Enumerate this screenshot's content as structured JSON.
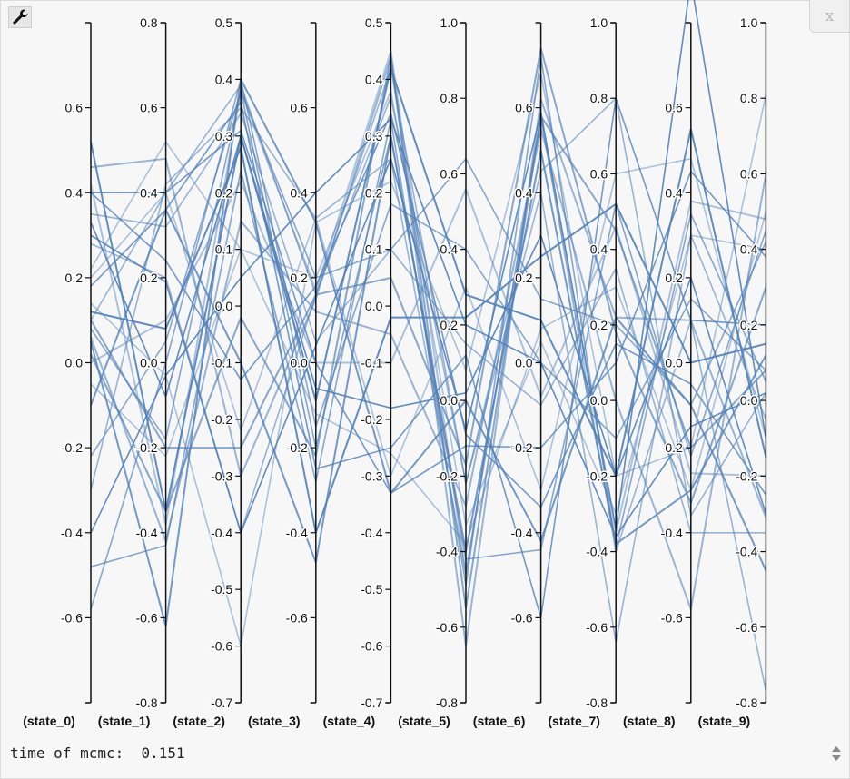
{
  "status": {
    "label": "time of mcmc:",
    "value": "0.151"
  },
  "toolbar": {
    "tool_icon": "wrench-icon"
  },
  "close": {
    "label": "x",
    "icon": "close-icon"
  },
  "scroll": {
    "icon": "up-down-arrows-icon"
  },
  "colors": {
    "line": "#4f7fb8",
    "axis": "#111111",
    "background": "#f7f7f7"
  },
  "chart_data": {
    "type": "parallel-coordinates",
    "dimensions": [
      {
        "name": "(state_0)",
        "range": [
          -0.8,
          0.8
        ],
        "ticks": [
          "0.6",
          "0.4",
          "0.2",
          "0.0",
          "-0.2",
          "-0.4",
          "-0.6"
        ]
      },
      {
        "name": "(state_1)",
        "range": [
          -0.8,
          0.8
        ],
        "ticks": [
          "0.8",
          "0.6",
          "0.4",
          "0.2",
          "0.0",
          "-0.2",
          "-0.4",
          "-0.6",
          "-0.8"
        ]
      },
      {
        "name": "(state_2)",
        "range": [
          -0.7,
          0.5
        ],
        "ticks": [
          "0.5",
          "0.4",
          "0.3",
          "0.2",
          "0.1",
          "0.0",
          "-0.1",
          "-0.2",
          "-0.3",
          "-0.4",
          "-0.5",
          "-0.6",
          "-0.7"
        ]
      },
      {
        "name": "(state_3)",
        "range": [
          -0.8,
          0.8
        ],
        "ticks": [
          "0.6",
          "0.4",
          "0.2",
          "0.0",
          "-0.2",
          "-0.4",
          "-0.6"
        ]
      },
      {
        "name": "(state_4)",
        "range": [
          -0.7,
          0.5
        ],
        "ticks": [
          "0.5",
          "0.4",
          "0.3",
          "0.2",
          "0.1",
          "0.0",
          "-0.1",
          "-0.2",
          "-0.3",
          "-0.4",
          "-0.5",
          "-0.6",
          "-0.7"
        ]
      },
      {
        "name": "(state_5)",
        "range": [
          -0.8,
          1.0
        ],
        "ticks": [
          "1.0",
          "0.8",
          "0.6",
          "0.4",
          "0.2",
          "0.0",
          "-0.2",
          "-0.4",
          "-0.6",
          "-0.8"
        ]
      },
      {
        "name": "(state_6)",
        "range": [
          -0.8,
          0.8
        ],
        "ticks": [
          "0.6",
          "0.4",
          "0.2",
          "0.0",
          "-0.2",
          "-0.4",
          "-0.6"
        ]
      },
      {
        "name": "(state_7)",
        "range": [
          -0.8,
          1.0
        ],
        "ticks": [
          "1.0",
          "0.8",
          "0.6",
          "0.4",
          "0.2",
          "0.0",
          "-0.2",
          "-0.4",
          "-0.6",
          "-0.8"
        ]
      },
      {
        "name": "(state_8)",
        "range": [
          -0.8,
          0.8
        ],
        "ticks": [
          "0.6",
          "0.4",
          "0.2",
          "0.0",
          "-0.2",
          "-0.4",
          "-0.6"
        ]
      },
      {
        "name": "(state_9)",
        "range": [
          -0.8,
          1.0
        ],
        "ticks": [
          "1.0",
          "0.8",
          "0.6",
          "0.4",
          "0.2",
          "0.0",
          "-0.2",
          "-0.4",
          "-0.6",
          "-0.8"
        ]
      }
    ],
    "samples": [
      [
        0.42,
        -0.38,
        0.38,
        0.17,
        0.45,
        -0.46,
        0.58,
        -0.35,
        0.38,
        0.48
      ],
      [
        0.1,
        0.4,
        0.39,
        0.16,
        0.37,
        -0.22,
        0.45,
        0.8,
        -0.36,
        0.02
      ],
      [
        -0.48,
        -0.43,
        0.24,
        -0.28,
        0.33,
        -0.49,
        0.72,
        -0.39,
        0.35,
        0.05
      ],
      [
        0.05,
        -0.62,
        0.4,
        0.33,
        -0.33,
        0.0,
        -0.42,
        0.22,
        -0.1,
        -0.45
      ],
      [
        0.3,
        0.19,
        -0.4,
        0.04,
        0.26,
        -0.08,
        0.59,
        -0.34,
        0.9,
        -0.1
      ],
      [
        0.14,
        -0.03,
        -0.6,
        0.33,
        0.22,
        0.08,
        0.68,
        -0.2,
        -0.2,
        0.81
      ],
      [
        0.46,
        0.48,
        -0.3,
        0.15,
        0.44,
        -0.65,
        0.62,
        0.22,
        0.1,
        -0.31
      ],
      [
        -0.22,
        0.05,
        0.38,
        -0.2,
        0.3,
        -0.42,
        -0.44,
        0.52,
        -0.22,
        0.45
      ],
      [
        0.18,
        0.36,
        0.36,
        -0.25,
        -0.25,
        0.12,
        -0.6,
        0.8,
        0.1,
        0.2
      ],
      [
        0.52,
        -0.35,
        0.3,
        -0.09,
        0.42,
        0.28,
        0.1,
        -0.2,
        0.55,
        -0.15
      ],
      [
        0.22,
        0.52,
        0.1,
        -0.12,
        -0.26,
        -0.38,
        0.08,
        0.3,
        -0.3,
        0.5
      ],
      [
        -0.3,
        0.42,
        0.35,
        0.34,
        0.26,
        -0.46,
        0.58,
        -0.4,
        0.1,
        -0.77
      ],
      [
        0.1,
        -0.2,
        -0.25,
        0.16,
        0.05,
        -0.17,
        0.74,
        0.18,
        -0.33,
        0.3
      ],
      [
        0.4,
        0.4,
        0.31,
        0.0,
        -0.33,
        -0.12,
        -0.2,
        0.1,
        0.45,
        0.38
      ],
      [
        -0.4,
        -0.03,
        0.05,
        0.4,
        0.33,
        0.2,
        0.0,
        -0.36,
        -0.15,
        0.02
      ],
      [
        0.0,
        0.1,
        0.22,
        0.0,
        -0.1,
        0.56,
        -0.08,
        0.46,
        -0.26,
        -0.2
      ],
      [
        0.28,
        0.2,
        -0.4,
        0.16,
        0.42,
        -0.22,
        0.4,
        -0.64,
        0.3,
        -0.05
      ],
      [
        0.08,
        -0.18,
        0.38,
        0.2,
        0.1,
        0.64,
        0.15,
        0.2,
        -0.1,
        0.42
      ],
      [
        -0.1,
        0.36,
        -0.1,
        -0.47,
        0.3,
        -0.4,
        0.5,
        -0.38,
        -0.3,
        0.12
      ],
      [
        0.33,
        -0.08,
        0.3,
        -0.06,
        -0.18,
        0.02,
        0.3,
        -0.2,
        0.2,
        -0.3
      ],
      [
        0.2,
        0.4,
        -0.22,
        0.34,
        -0.3,
        0.3,
        -0.3,
        0.6,
        0.48,
        -0.1
      ],
      [
        0.06,
        -0.42,
        0.15,
        0.12,
        -0.05,
        -0.28,
        0.55,
        0.0,
        -0.58,
        0.6
      ],
      [
        -0.58,
        0.0,
        0.4,
        -0.15,
        0.18,
        0.4,
        0.0,
        -0.1,
        0.15,
        0.08
      ],
      [
        0.4,
        0.24,
        -0.13,
        0.18,
        0.34,
        -0.09,
        -0.34,
        0.15,
        -0.05,
        -0.25
      ],
      [
        0.12,
        0.08,
        0.28,
        -0.4,
        -0.02,
        0.22,
        0.25,
        0.52,
        0.0,
        0.15
      ],
      [
        -0.05,
        -0.22,
        0.1,
        0.2,
        0.38,
        -0.33,
        0.05,
        -0.3,
        0.3,
        0.4
      ],
      [
        0.35,
        0.32,
        0.34,
        0.05,
        0.1,
        0.15,
        -0.1,
        0.35,
        -0.4,
        -0.35
      ],
      [
        0.02,
        -0.35,
        -0.02,
        -0.22,
        0.44,
        -0.55,
        0.58,
        0.45,
        -0.2,
        0.08
      ]
    ]
  }
}
